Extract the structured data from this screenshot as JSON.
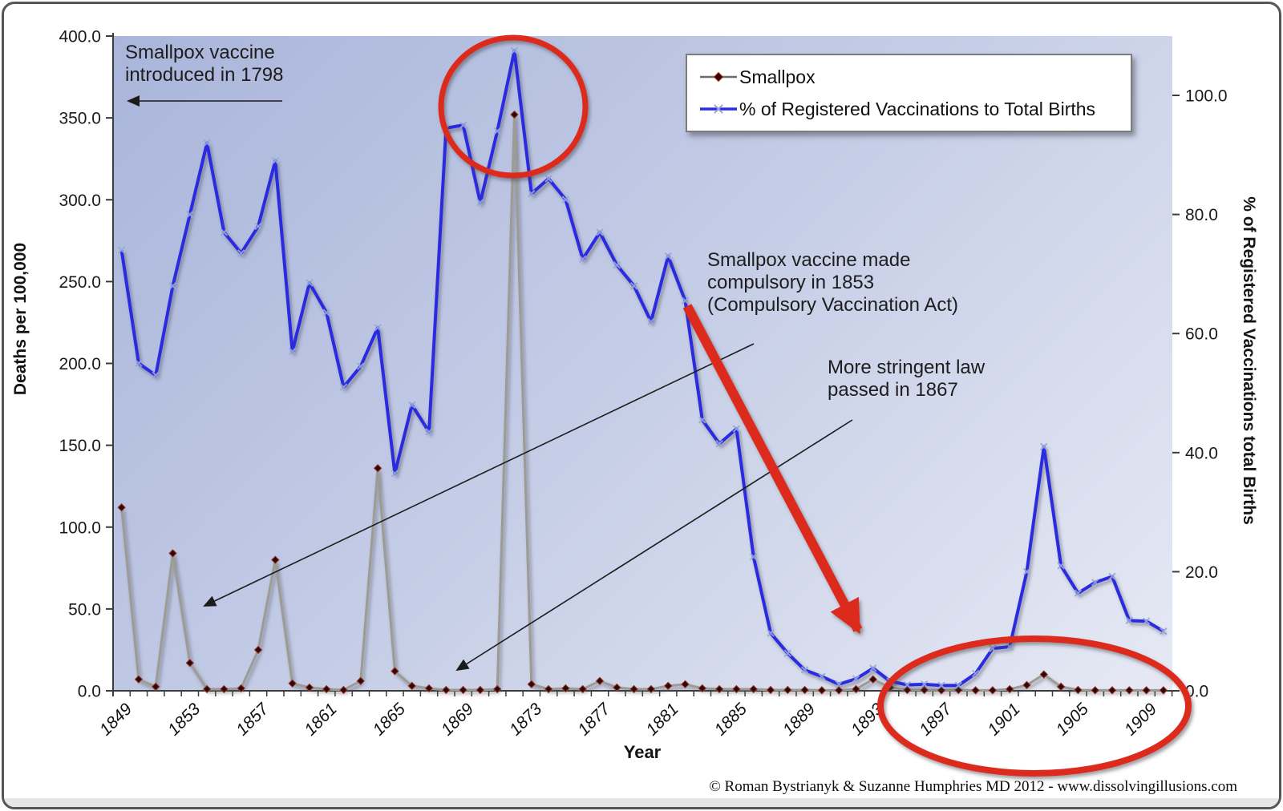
{
  "page": {
    "footer": "© Roman Bystrianyk & Suzanne Humphries MD 2012 - www.dissolvingillusions.com"
  },
  "legend": {
    "items": [
      {
        "label": "Smallpox"
      },
      {
        "label": "% of Registered Vaccinations to Total Births"
      }
    ]
  },
  "annotations": {
    "intro": {
      "lines": [
        "Smallpox vaccine",
        "introduced in 1798"
      ]
    },
    "compulsory": {
      "lines": [
        "Smallpox vaccine made",
        "compulsory in 1853",
        "(Compulsory Vaccination Act)"
      ]
    },
    "stringent": {
      "lines": [
        "More stringent law",
        "passed in 1867"
      ]
    }
  },
  "colors": {
    "vaccination_line": "#2b2be0",
    "vaccination_marker": "#97a6dc",
    "smallpox_line": "#9c9c94",
    "smallpox_marker": "#2a0a0a",
    "smallpox_marker_edge": "#a03428",
    "annotation_red": "#dc2b1c",
    "axis_color": "#3c3c3c",
    "plot_bg_top": "#a9b5da",
    "plot_bg_bottom": "#e6e9f4"
  },
  "chart_data": {
    "type": "line",
    "title": "",
    "grid": false,
    "legend_position": "top-right",
    "x": [
      1849,
      1850,
      1851,
      1852,
      1853,
      1854,
      1855,
      1856,
      1857,
      1858,
      1859,
      1860,
      1861,
      1862,
      1863,
      1864,
      1865,
      1866,
      1867,
      1868,
      1869,
      1870,
      1871,
      1872,
      1873,
      1874,
      1875,
      1876,
      1877,
      1878,
      1879,
      1880,
      1881,
      1882,
      1883,
      1884,
      1885,
      1886,
      1887,
      1888,
      1889,
      1890,
      1891,
      1892,
      1893,
      1894,
      1895,
      1896,
      1897,
      1898,
      1899,
      1900,
      1901,
      1902,
      1903,
      1904,
      1905,
      1906,
      1907,
      1908,
      1909,
      1910
    ],
    "series": [
      {
        "name": "Smallpox",
        "axis": "left",
        "marker": "diamond",
        "values": [
          112,
          7,
          2.5,
          84,
          17,
          1,
          1,
          1.5,
          25,
          80,
          4.5,
          2,
          1,
          0.5,
          6,
          136,
          12,
          3,
          1.5,
          0.5,
          0.5,
          0.5,
          1,
          352,
          4,
          1,
          1.5,
          1,
          6,
          2,
          1,
          1,
          3,
          4,
          1.5,
          1,
          1,
          1,
          0.5,
          0.5,
          0.5,
          0.3,
          0.3,
          1,
          7,
          2,
          0.5,
          0.5,
          0.3,
          0.5,
          0.3,
          0.3,
          1,
          3.5,
          10,
          2.5,
          0.5,
          0.3,
          0.3,
          0.3,
          0.3,
          0.3
        ]
      },
      {
        "name": "% of Registered Vaccinations to Total Births",
        "axis": "right",
        "marker": "cross",
        "values": [
          74,
          55,
          53,
          68,
          80,
          92,
          77,
          73.5,
          78,
          89,
          57,
          68.5,
          63.5,
          51,
          54.5,
          61,
          36.5,
          48,
          43.5,
          94.5,
          95,
          82,
          94,
          107.5,
          83.5,
          86,
          82.5,
          72.5,
          77,
          71.5,
          68,
          62,
          73,
          65.5,
          45.5,
          41.5,
          44,
          22.5,
          9.7,
          6.3,
          3.5,
          2.4,
          1.1,
          2,
          3.8,
          1.6,
          1,
          1.1,
          0.9,
          0.9,
          2.9,
          7.1,
          7.4,
          20,
          41,
          21,
          16.4,
          18.2,
          19.2,
          11.8,
          11.7,
          10
        ]
      }
    ],
    "left_axis": {
      "label": "Deaths per 100,000",
      "min": 0,
      "max": 400,
      "step": 50
    },
    "right_axis": {
      "label": "% of Registered Vaccinations total Births",
      "min": 0,
      "max": 100,
      "step": 20
    },
    "x_axis": {
      "label": "Year",
      "labeled_years": [
        1849,
        1853,
        1857,
        1861,
        1865,
        1869,
        1873,
        1877,
        1881,
        1885,
        1889,
        1893,
        1897,
        1901,
        1905,
        1909
      ]
    }
  }
}
